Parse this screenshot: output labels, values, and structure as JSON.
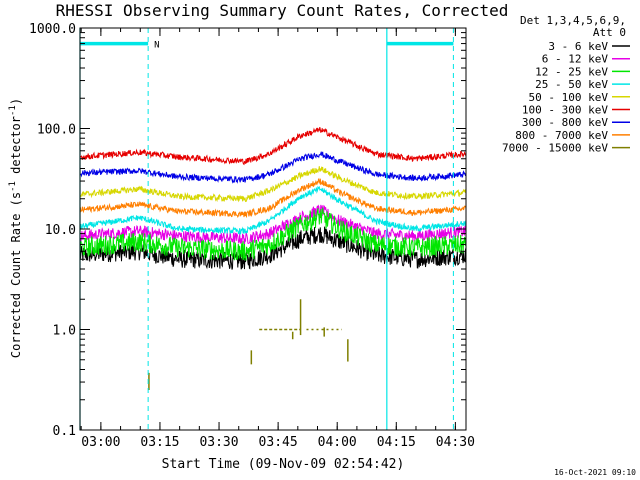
{
  "chart_data": {
    "type": "line",
    "title": "RHESSI Observing Summary Count Rates, Corrected",
    "xlabel": "Start Time (09-Nov-09 02:54:42)",
    "ylabel_main": "Corrected Count Rate (s",
    "ylabel_sup1": "-1",
    "ylabel_mid": " detector",
    "ylabel_sup2": "-1",
    "ylabel_end": ")",
    "yscale": "log",
    "ylim": [
      0.1,
      1000
    ],
    "xlim_minutes": [
      0,
      98
    ],
    "x_unit": "minutes after 02:54:42",
    "yticks": [
      {
        "v": 0.1,
        "label": "0.1"
      },
      {
        "v": 1,
        "label": "1.0"
      },
      {
        "v": 10,
        "label": "10.0"
      },
      {
        "v": 100,
        "label": "100.0"
      },
      {
        "v": 1000,
        "label": "1000.0"
      }
    ],
    "xticks": [
      {
        "t": 5.3,
        "label": "03:00"
      },
      {
        "t": 20.3,
        "label": "03:15"
      },
      {
        "t": 35.3,
        "label": "03:30"
      },
      {
        "t": 50.3,
        "label": "03:45"
      },
      {
        "t": 65.3,
        "label": "04:00"
      },
      {
        "t": 80.3,
        "label": "04:15"
      },
      {
        "t": 95.3,
        "label": "04:30"
      }
    ],
    "legend": {
      "header": [
        "Det 1,3,4,5,6,9,",
        "Att 0"
      ],
      "placement": "right",
      "entries": [
        {
          "label": "3 - 6 keV",
          "color": "#000000"
        },
        {
          "label": "6 - 12 keV",
          "color": "#e600e6"
        },
        {
          "label": "12 - 25 keV",
          "color": "#00e600"
        },
        {
          "label": "25 - 50 keV",
          "color": "#00e6e6"
        },
        {
          "label": "50 - 100 keV",
          "color": "#d7d700"
        },
        {
          "label": "100 - 300 keV",
          "color": "#e60000"
        },
        {
          "label": "300 - 800 keV",
          "color": "#0000e6"
        },
        {
          "label": "800 - 7000 keV",
          "color": "#ff7f00"
        },
        {
          "label": "7000 - 15000 keV",
          "color": "#7f7f00"
        }
      ]
    },
    "series": [
      {
        "name": "3 - 6 keV",
        "color": "#000000",
        "t": [
          0,
          15,
          25,
          42,
          48,
          56,
          61,
          66,
          75,
          85,
          98
        ],
        "v": [
          5.5,
          6.0,
          5.0,
          4.8,
          5.5,
          8.0,
          9.0,
          7.5,
          5.5,
          5.0,
          5.5
        ]
      },
      {
        "name": "6 - 12 keV",
        "color": "#e600e6",
        "t": [
          0,
          15,
          25,
          42,
          48,
          56,
          61,
          66,
          75,
          85,
          98
        ],
        "v": [
          8.5,
          9.5,
          8.5,
          8.0,
          9.0,
          13.0,
          15.5,
          12.0,
          9.0,
          8.5,
          9.5
        ]
      },
      {
        "name": "12 - 25 keV",
        "color": "#00e600",
        "t": [
          0,
          15,
          25,
          42,
          48,
          56,
          61,
          66,
          75,
          85,
          98
        ],
        "v": [
          6.5,
          7.5,
          6.5,
          6.0,
          7.0,
          11.0,
          13.5,
          10.0,
          7.0,
          6.5,
          7.0
        ]
      },
      {
        "name": "25 - 50 keV",
        "color": "#00e6e6",
        "t": [
          0,
          15,
          25,
          42,
          48,
          56,
          61,
          66,
          75,
          85,
          98
        ],
        "v": [
          10.5,
          13.0,
          10.0,
          9.5,
          12.0,
          21.0,
          25.0,
          19.0,
          12.0,
          10.0,
          11.5
        ]
      },
      {
        "name": "50 - 100 keV",
        "color": "#d7d700",
        "t": [
          0,
          15,
          25,
          42,
          48,
          56,
          61,
          66,
          75,
          85,
          98
        ],
        "v": [
          22,
          25,
          21,
          20,
          24,
          34,
          40,
          32,
          23,
          21,
          23
        ]
      },
      {
        "name": "100 - 300 keV",
        "color": "#e60000",
        "t": [
          0,
          15,
          25,
          42,
          48,
          56,
          61,
          66,
          75,
          85,
          98
        ],
        "v": [
          52,
          58,
          52,
          47,
          56,
          85,
          97,
          80,
          56,
          50,
          56
        ]
      },
      {
        "name": "300 - 800 keV",
        "color": "#0000e6",
        "t": [
          0,
          15,
          25,
          42,
          48,
          56,
          61,
          66,
          75,
          85,
          98
        ],
        "v": [
          36,
          38,
          33,
          31,
          35,
          50,
          56,
          47,
          35,
          32,
          35
        ]
      },
      {
        "name": "800 - 7000 keV",
        "color": "#ff7f00",
        "t": [
          0,
          15,
          25,
          42,
          48,
          56,
          61,
          66,
          75,
          85,
          98
        ],
        "v": [
          15.5,
          17.5,
          15.0,
          14.0,
          16.0,
          25.0,
          30.0,
          23.0,
          16.0,
          14.5,
          16.0
        ]
      }
    ],
    "spikes_7000_15000keV": [
      {
        "t": 17.5,
        "lo": 0.25,
        "hi": 0.37
      },
      {
        "t": 43.5,
        "lo": 0.45,
        "hi": 0.62
      },
      {
        "t": 54.0,
        "lo": 0.8,
        "hi": 0.95
      },
      {
        "t": 56.0,
        "lo": 0.88,
        "hi": 2.0
      },
      {
        "t": 62.0,
        "lo": 0.85,
        "hi": 1.05
      },
      {
        "t": 68.0,
        "lo": 0.48,
        "hi": 0.8
      }
    ],
    "flare_flag": {
      "color": "#00e6e6",
      "level": 700,
      "label": "N"
    },
    "night_intervals": [
      {
        "t0": 0,
        "t1": 17.3
      },
      {
        "t0": 77.9,
        "t1": 94.8
      }
    ],
    "footer_timestamp": "16-Oct-2021 09:10"
  }
}
